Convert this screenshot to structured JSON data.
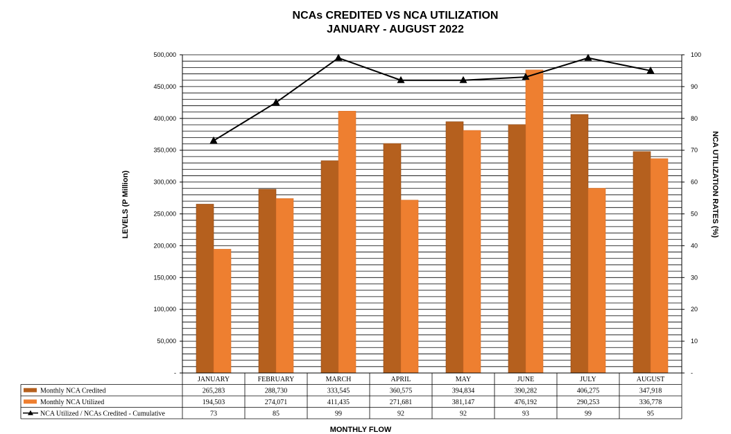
{
  "chart_data": {
    "type": "bar",
    "title": "NCAs CREDITED VS NCA UTILIZATION",
    "subtitle": "JANUARY - AUGUST 2022",
    "xlabel": "MONTHLY FLOW",
    "ylabel": "LEVELS (P Million)",
    "y2label": "NCA UTILIZATION RATES (%)",
    "categories": [
      "JANUARY",
      "FEBRUARY",
      "MARCH",
      "APRIL",
      "MAY",
      "JUNE",
      "JULY",
      "AUGUST"
    ],
    "ylim": [
      0,
      500000
    ],
    "y2lim": [
      0,
      100
    ],
    "yticks": [
      "-",
      "50,000",
      "100,000",
      "150,000",
      "200,000",
      "250,000",
      "300,000",
      "350,000",
      "400,000",
      "450,000",
      "500,000"
    ],
    "y2ticks": [
      "-",
      "10",
      "20",
      "30",
      "40",
      "50",
      "60",
      "70",
      "80",
      "90",
      "100"
    ],
    "grid": true,
    "legend": "table-below",
    "series": [
      {
        "name": "Monthly NCA Credited",
        "kind": "bar",
        "color": "#b5601e",
        "values": [
          265283,
          288730,
          333545,
          360575,
          394834,
          390282,
          406275,
          347918
        ],
        "labels": [
          "265,283",
          "288,730",
          "333,545",
          "360,575",
          "394,834",
          "390,282",
          "406,275",
          "347,918"
        ]
      },
      {
        "name": "Monthly NCA Utilized",
        "kind": "bar",
        "color": "#ee7f30",
        "values": [
          194503,
          274071,
          411435,
          271681,
          381147,
          476192,
          290253,
          336778
        ],
        "labels": [
          "194,503",
          "274,071",
          "411,435",
          "271,681",
          "381,147",
          "476,192",
          "290,253",
          "336,778"
        ]
      },
      {
        "name": "NCA Utilized / NCAs Credited - Cumulative",
        "kind": "line",
        "axis": "right",
        "color": "#000000",
        "values": [
          73,
          85,
          99,
          92,
          92,
          93,
          99,
          95
        ],
        "labels": [
          "73",
          "85",
          "99",
          "92",
          "92",
          "93",
          "99",
          "95"
        ]
      }
    ]
  }
}
